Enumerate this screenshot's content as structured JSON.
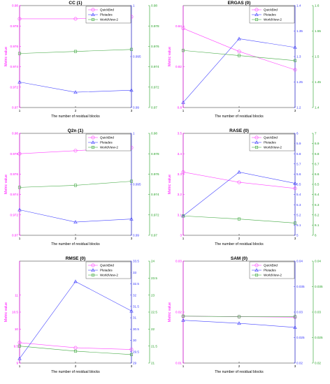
{
  "chart_data": [
    {
      "type": "line",
      "title": "CC (1)",
      "xlabel": "The number of residual blocks",
      "ylabel": "Metric value",
      "x": [
        1,
        2,
        3
      ],
      "xticks": [
        "1",
        "2",
        "3"
      ],
      "axes": [
        {
          "side": "left",
          "color": "#ff00ff",
          "ylim": [
            0.97,
            0.98
          ],
          "ticks": [
            "0.97",
            "0.972",
            "0.974",
            "0.976",
            "0.978",
            "0.98"
          ]
        },
        {
          "side": "right",
          "color": "#3333ff",
          "ylim": [
            0.99,
            1.0
          ],
          "ticks": [
            "0.99",
            "0.995",
            "1"
          ]
        },
        {
          "side": "right2",
          "color": "#22a022",
          "ylim": [
            0.97,
            0.98
          ],
          "ticks": [
            "0.97",
            "0.972",
            "0.974",
            "0.976",
            "0.978",
            "0.98"
          ]
        }
      ],
      "series": [
        {
          "name": "QuickBird",
          "axis": 0,
          "marker": "circle",
          "color": "#ff44ff",
          "values": [
            0.9787,
            0.9787,
            0.9789
          ]
        },
        {
          "name": "Pleiades",
          "axis": 1,
          "marker": "triangle",
          "color": "#4444ff",
          "values": [
            0.9925,
            0.9915,
            0.9917
          ]
        },
        {
          "name": "WorldView-2",
          "axis": 2,
          "marker": "square",
          "color": "#44aa44",
          "values": [
            0.9753,
            0.9755,
            0.9757
          ]
        }
      ]
    },
    {
      "type": "line",
      "title": "ERGAS (0)",
      "xlabel": "The number of residual blocks",
      "ylabel": "Metric value",
      "x": [
        1,
        2,
        3
      ],
      "xticks": [
        "1",
        "2",
        "3"
      ],
      "axes": [
        {
          "side": "left",
          "color": "#ff00ff",
          "ylim": [
            0.8,
            0.85
          ],
          "ticks": [
            "0.8",
            "0.82",
            "0.84"
          ]
        },
        {
          "side": "right",
          "color": "#3333ff",
          "ylim": [
            1.2,
            1.4
          ],
          "ticks": [
            "1.2",
            "1.25",
            "1.3",
            "1.35",
            "1.4"
          ]
        },
        {
          "side": "right2",
          "color": "#22a022",
          "ylim": [
            1.4,
            1.6
          ],
          "ticks": [
            "1.4",
            "1.45",
            "1.5",
            "1.55",
            "1.6"
          ]
        }
      ],
      "series": [
        {
          "name": "QuickBird",
          "axis": 0,
          "marker": "circle",
          "color": "#ff44ff",
          "values": [
            0.8388,
            0.8275,
            0.8185
          ]
        },
        {
          "name": "Pleiades",
          "axis": 1,
          "marker": "triangle",
          "color": "#4444ff",
          "values": [
            1.21,
            1.335,
            1.318
          ]
        },
        {
          "name": "WorldView-2",
          "axis": 2,
          "marker": "square",
          "color": "#44aa44",
          "values": [
            1.512,
            1.502,
            1.492
          ]
        }
      ]
    },
    {
      "type": "line",
      "title": "Q2n (1)",
      "xlabel": "The number of residual blocks",
      "ylabel": "Metric value",
      "x": [
        1,
        2,
        3
      ],
      "xticks": [
        "1",
        "2",
        "3"
      ],
      "axes": [
        {
          "side": "left",
          "color": "#ff00ff",
          "ylim": [
            0.97,
            0.98
          ],
          "ticks": [
            "0.97",
            "0.972",
            "0.974",
            "0.976",
            "0.978",
            "0.98"
          ]
        },
        {
          "side": "right",
          "color": "#3333ff",
          "ylim": [
            0.99,
            1.0
          ],
          "ticks": [
            "0.99",
            "0.995",
            "1"
          ]
        },
        {
          "side": "right2",
          "color": "#22a022",
          "ylim": [
            0.97,
            0.98
          ],
          "ticks": [
            "0.97",
            "0.972",
            "0.974",
            "0.976",
            "0.978",
            "0.98"
          ]
        }
      ],
      "series": [
        {
          "name": "QuickBird",
          "axis": 0,
          "marker": "circle",
          "color": "#ff44ff",
          "values": [
            0.978,
            0.9783,
            0.9786
          ]
        },
        {
          "name": "Pleiades",
          "axis": 1,
          "marker": "triangle",
          "color": "#4444ff",
          "values": [
            0.9925,
            0.9913,
            0.9916
          ]
        },
        {
          "name": "WorldView-2",
          "axis": 2,
          "marker": "square",
          "color": "#44aa44",
          "values": [
            0.9747,
            0.9749,
            0.9753
          ]
        }
      ]
    },
    {
      "type": "line",
      "title": "RASE (0)",
      "xlabel": "The number of residual blocks",
      "ylabel": "Metric value",
      "x": [
        1,
        2,
        3
      ],
      "xticks": [
        "1",
        "2",
        "3"
      ],
      "axes": [
        {
          "side": "left",
          "color": "#ff00ff",
          "ylim": [
            3.0,
            3.5
          ],
          "ticks": [
            "3",
            "3.1",
            "3.2",
            "3.3",
            "3.4",
            "3.5"
          ]
        },
        {
          "side": "right",
          "color": "#3333ff",
          "ylim": [
            5.0,
            6.0
          ],
          "ticks": [
            "5",
            "5.1",
            "5.2",
            "5.3",
            "5.4",
            "5.5",
            "5.6",
            "5.7",
            "5.8",
            "5.9",
            "6"
          ]
        },
        {
          "side": "right2",
          "color": "#22a022",
          "ylim": [
            6.0,
            7.0
          ],
          "ticks": [
            "6",
            "6.1",
            "6.2",
            "6.3",
            "6.4",
            "6.5",
            "6.6",
            "6.7",
            "6.8",
            "6.9",
            "7"
          ]
        }
      ],
      "series": [
        {
          "name": "QuickBird",
          "axis": 0,
          "marker": "circle",
          "color": "#ff44ff",
          "values": [
            3.31,
            3.26,
            3.23
          ]
        },
        {
          "name": "Pleiades",
          "axis": 1,
          "marker": "triangle",
          "color": "#4444ff",
          "values": [
            5.19,
            5.62,
            5.51
          ]
        },
        {
          "name": "WorldView-2",
          "axis": 2,
          "marker": "square",
          "color": "#44aa44",
          "values": [
            6.19,
            6.16,
            6.12
          ]
        }
      ]
    },
    {
      "type": "line",
      "title": "RMSE (0)",
      "xlabel": "The number of residual blocks",
      "ylabel": "Metric value",
      "x": [
        1,
        2,
        3
      ],
      "xticks": [
        "1",
        "2",
        "3"
      ],
      "axes": [
        {
          "side": "left",
          "color": "#ff00ff",
          "ylim": [
            9.0,
            12.0
          ],
          "ticks": [
            "9",
            "9.5",
            "10",
            "10.5",
            "11"
          ]
        },
        {
          "side": "right",
          "color": "#3333ff",
          "ylim": [
            29.0,
            33.5
          ],
          "ticks": [
            "29",
            "29.5",
            "30",
            "30.5",
            "31",
            "31.5",
            "32",
            "32.5",
            "33",
            "33.5"
          ]
        },
        {
          "side": "right2",
          "color": "#22a022",
          "ylim": [
            21.0,
            24.0
          ],
          "ticks": [
            "21",
            "21.5",
            "22",
            "22.5",
            "23",
            "23.5",
            "24"
          ]
        }
      ],
      "series": [
        {
          "name": "QuickBird",
          "axis": 0,
          "marker": "circle",
          "color": "#ff44ff",
          "values": [
            9.6,
            9.45,
            9.4
          ]
        },
        {
          "name": "Pleiades",
          "axis": 1,
          "marker": "triangle",
          "color": "#4444ff",
          "values": [
            29.2,
            32.6,
            31.3
          ]
        },
        {
          "name": "WorldView-2",
          "axis": 2,
          "marker": "square",
          "color": "#44aa44",
          "values": [
            21.5,
            21.35,
            21.25
          ]
        }
      ]
    },
    {
      "type": "line",
      "title": "SAM (0)",
      "xlabel": "The number of residual blocks",
      "ylabel": "Metric value",
      "x": [
        1,
        2,
        3
      ],
      "xticks": [
        "1",
        "2",
        "3"
      ],
      "axes": [
        {
          "side": "left",
          "color": "#ff00ff",
          "ylim": [
            0.01,
            0.03
          ],
          "ticks": [
            "0.01",
            "0.02",
            "0.03"
          ]
        },
        {
          "side": "right",
          "color": "#3333ff",
          "ylim": [
            0.02,
            0.04
          ],
          "ticks": [
            "0.02",
            "0.025",
            "0.03",
            "0.035",
            "0.04"
          ]
        },
        {
          "side": "right2",
          "color": "#22a022",
          "ylim": [
            0.02,
            0.04
          ],
          "ticks": [
            "0.02",
            "0.025",
            "0.03",
            "0.035",
            "0.04"
          ]
        }
      ],
      "series": [
        {
          "name": "QuickBird",
          "axis": 0,
          "marker": "circle",
          "color": "#ff44ff",
          "values": [
            0.0192,
            0.0191,
            0.019
          ]
        },
        {
          "name": "Pleiades",
          "axis": 1,
          "marker": "triangle",
          "color": "#4444ff",
          "values": [
            0.0284,
            0.0278,
            0.027
          ]
        },
        {
          "name": "WorldView-2",
          "axis": 2,
          "marker": "square",
          "color": "#44aa44",
          "values": [
            0.0292,
            0.0291,
            0.0291
          ]
        }
      ]
    }
  ]
}
